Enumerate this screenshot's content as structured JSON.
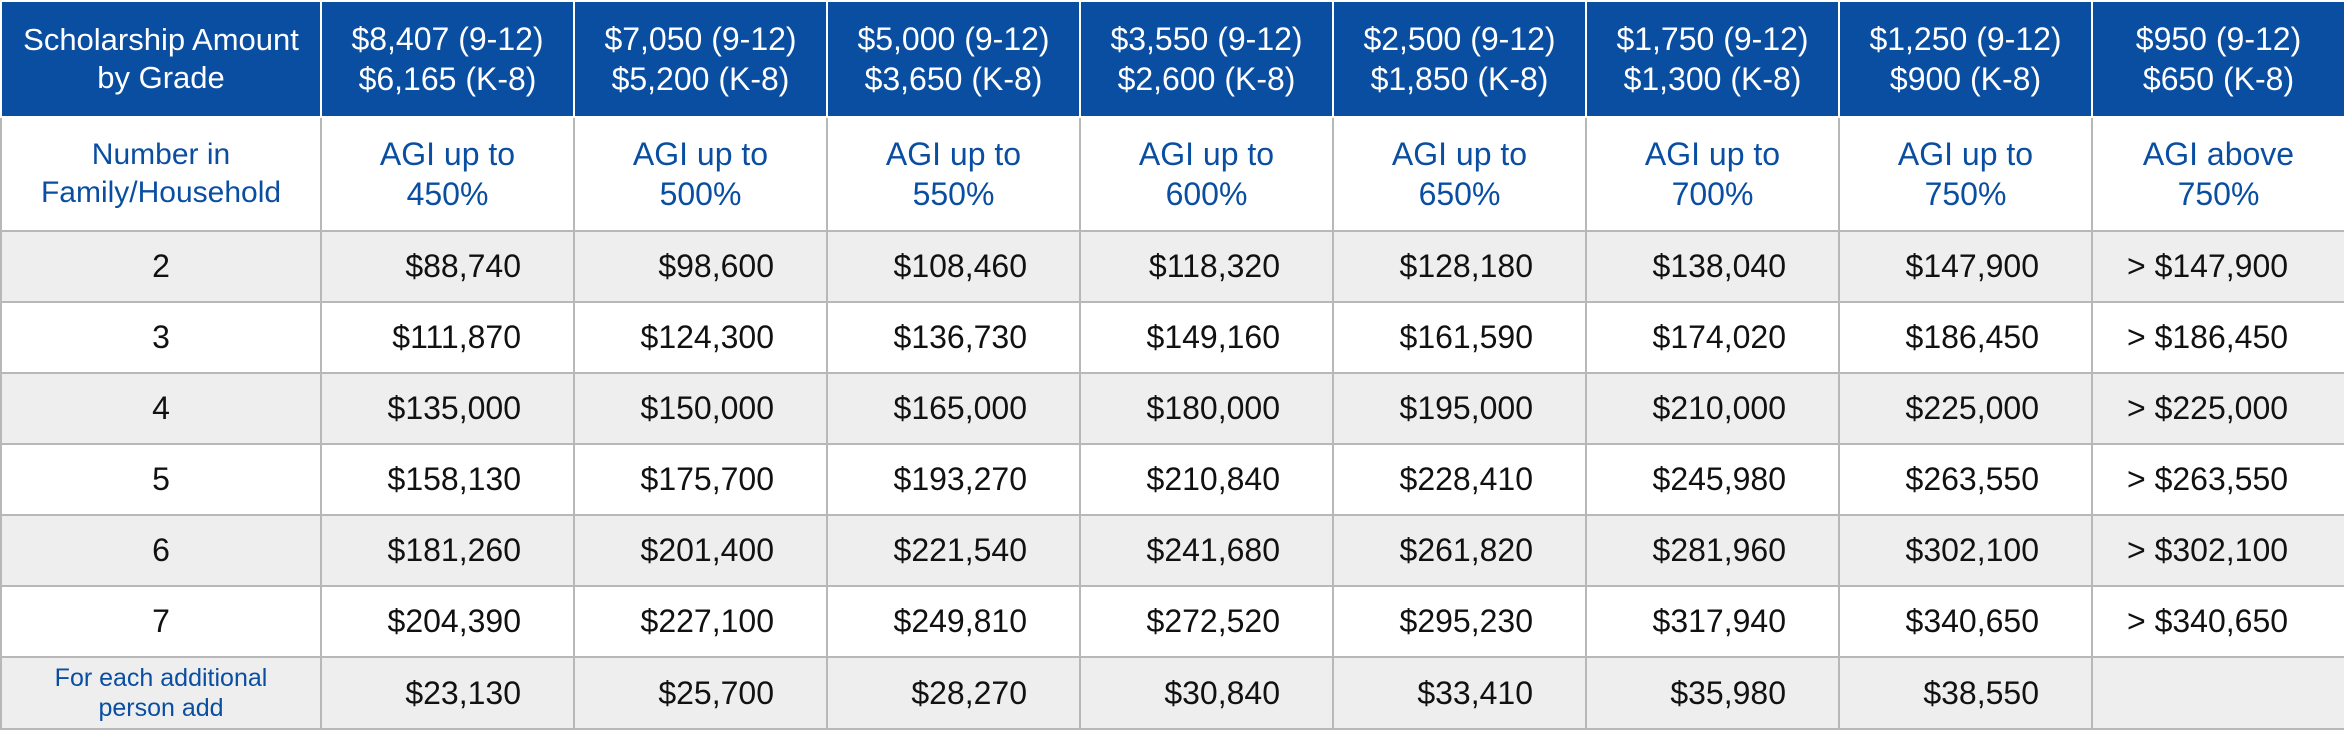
{
  "table": {
    "header_amount": {
      "first_label": [
        "Scholarship Amount",
        "by Grade"
      ],
      "columns": [
        [
          "$8,407 (9-12)",
          "$6,165 (K-8)"
        ],
        [
          "$7,050 (9-12)",
          "$5,200 (K-8)"
        ],
        [
          "$5,000 (9-12)",
          "$3,650 (K-8)"
        ],
        [
          "$3,550 (9-12)",
          "$2,600 (K-8)"
        ],
        [
          "$2,500 (9-12)",
          "$1,850 (K-8)"
        ],
        [
          "$1,750 (9-12)",
          "$1,300 (K-8)"
        ],
        [
          "$1,250 (9-12)",
          "$900 (K-8)"
        ],
        [
          "$950 (9-12)",
          "$650 (K-8)"
        ]
      ]
    },
    "header_agi": {
      "first_label": [
        "Number in",
        "Family/Household"
      ],
      "columns": [
        [
          "AGI up to",
          "450%"
        ],
        [
          "AGI up to",
          "500%"
        ],
        [
          "AGI up to",
          "550%"
        ],
        [
          "AGI up to",
          "600%"
        ],
        [
          "AGI up to",
          "650%"
        ],
        [
          "AGI up to",
          "700%"
        ],
        [
          "AGI up to",
          "750%"
        ],
        [
          "AGI above",
          "750%"
        ]
      ]
    },
    "rows": [
      {
        "size": "2",
        "values": [
          "$88,740",
          "$98,600",
          "$108,460",
          "$118,320",
          "$128,180",
          "$138,040",
          "$147,900",
          "> $147,900"
        ]
      },
      {
        "size": "3",
        "values": [
          "$111,870",
          "$124,300",
          "$136,730",
          "$149,160",
          "$161,590",
          "$174,020",
          "$186,450",
          "> $186,450"
        ]
      },
      {
        "size": "4",
        "values": [
          "$135,000",
          "$150,000",
          "$165,000",
          "$180,000",
          "$195,000",
          "$210,000",
          "$225,000",
          "> $225,000"
        ]
      },
      {
        "size": "5",
        "values": [
          "$158,130",
          "$175,700",
          "$193,270",
          "$210,840",
          "$228,410",
          "$245,980",
          "$263,550",
          "> $263,550"
        ]
      },
      {
        "size": "6",
        "values": [
          "$181,260",
          "$201,400",
          "$221,540",
          "$241,680",
          "$261,820",
          "$281,960",
          "$302,100",
          "> $302,100"
        ]
      },
      {
        "size": "7",
        "values": [
          "$204,390",
          "$227,100",
          "$249,810",
          "$272,520",
          "$295,230",
          "$317,940",
          "$340,650",
          "> $340,650"
        ]
      }
    ],
    "additional": {
      "label": [
        "For each additional",
        "person add"
      ],
      "values": [
        "$23,130",
        "$25,700",
        "$28,270",
        "$30,840",
        "$33,410",
        "$35,980",
        "$38,550",
        ""
      ]
    }
  },
  "colors": {
    "header_blue": "#0a4ea2",
    "row_shade": "#eeeeee",
    "border": "#b8b8b8"
  }
}
